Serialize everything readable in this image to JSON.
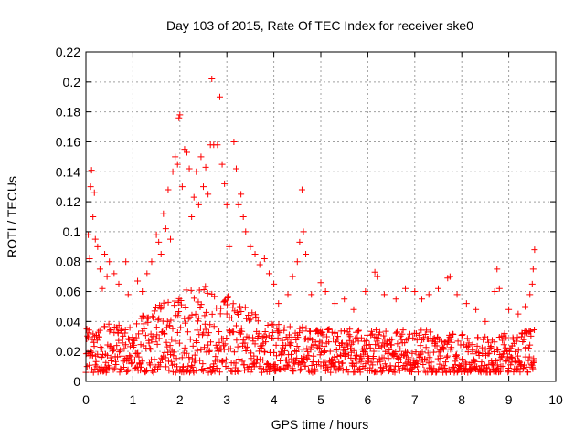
{
  "chart_data": {
    "type": "scatter",
    "title": "Day 103 of 2015, Rate Of TEC Index for receiver ske0",
    "xlabel": "GPS time / hours",
    "ylabel": "ROTI / TECUs",
    "xlim": [
      0,
      10
    ],
    "ylim": [
      0,
      0.22
    ],
    "x_ticks": [
      "0",
      "1",
      "2",
      "3",
      "4",
      "5",
      "6",
      "7",
      "8",
      "9",
      "10"
    ],
    "y_ticks": [
      "0",
      "0.02",
      "0.04",
      "0.06",
      "0.08",
      "0.1",
      "0.12",
      "0.14",
      "0.16",
      "0.18",
      "0.2",
      "0.22"
    ],
    "grid": true,
    "marker": "+",
    "color": "#ff0000",
    "series": [
      {
        "name": "ROTI",
        "points": [
          [
            0.02,
            0.035
          ],
          [
            0.05,
            0.098
          ],
          [
            0.08,
            0.082
          ],
          [
            0.1,
            0.13
          ],
          [
            0.12,
            0.141
          ],
          [
            0.15,
            0.11
          ],
          [
            0.18,
            0.126
          ],
          [
            0.2,
            0.095
          ],
          [
            0.25,
            0.09
          ],
          [
            0.3,
            0.075
          ],
          [
            0.35,
            0.062
          ],
          [
            0.4,
            0.085
          ],
          [
            0.45,
            0.07
          ],
          [
            0.5,
            0.08
          ],
          [
            0.6,
            0.072
          ],
          [
            0.7,
            0.065
          ],
          [
            0.85,
            0.08
          ],
          [
            0.9,
            0.058
          ],
          [
            1.1,
            0.067
          ],
          [
            1.2,
            0.06
          ],
          [
            1.3,
            0.072
          ],
          [
            1.4,
            0.08
          ],
          [
            1.5,
            0.098
          ],
          [
            1.55,
            0.093
          ],
          [
            1.6,
            0.085
          ],
          [
            1.65,
            0.112
          ],
          [
            1.7,
            0.102
          ],
          [
            1.75,
            0.128
          ],
          [
            1.8,
            0.095
          ],
          [
            1.85,
            0.14
          ],
          [
            1.9,
            0.15
          ],
          [
            1.95,
            0.145
          ],
          [
            1.98,
            0.176
          ],
          [
            2.0,
            0.178
          ],
          [
            2.05,
            0.13
          ],
          [
            2.1,
            0.155
          ],
          [
            2.15,
            0.153
          ],
          [
            2.2,
            0.142
          ],
          [
            2.25,
            0.11
          ],
          [
            2.3,
            0.123
          ],
          [
            2.35,
            0.14
          ],
          [
            2.4,
            0.118
          ],
          [
            2.45,
            0.15
          ],
          [
            2.5,
            0.13
          ],
          [
            2.55,
            0.143
          ],
          [
            2.6,
            0.125
          ],
          [
            2.65,
            0.158
          ],
          [
            2.68,
            0.202
          ],
          [
            2.72,
            0.158
          ],
          [
            2.8,
            0.158
          ],
          [
            2.85,
            0.19
          ],
          [
            2.9,
            0.145
          ],
          [
            2.95,
            0.132
          ],
          [
            3.0,
            0.118
          ],
          [
            3.05,
            0.09
          ],
          [
            3.15,
            0.16
          ],
          [
            3.2,
            0.142
          ],
          [
            3.25,
            0.118
          ],
          [
            3.3,
            0.125
          ],
          [
            3.35,
            0.11
          ],
          [
            3.4,
            0.1
          ],
          [
            3.5,
            0.09
          ],
          [
            3.6,
            0.085
          ],
          [
            3.7,
            0.078
          ],
          [
            3.8,
            0.082
          ],
          [
            3.9,
            0.072
          ],
          [
            4.0,
            0.065
          ],
          [
            4.1,
            0.052
          ],
          [
            4.3,
            0.058
          ],
          [
            4.4,
            0.07
          ],
          [
            4.5,
            0.08
          ],
          [
            4.55,
            0.093
          ],
          [
            4.6,
            0.128
          ],
          [
            4.63,
            0.1
          ],
          [
            4.68,
            0.085
          ],
          [
            4.8,
            0.058
          ],
          [
            5.0,
            0.066
          ],
          [
            5.1,
            0.06
          ],
          [
            5.3,
            0.052
          ],
          [
            5.5,
            0.055
          ],
          [
            5.7,
            0.048
          ],
          [
            5.95,
            0.06
          ],
          [
            6.15,
            0.073
          ],
          [
            6.2,
            0.07
          ],
          [
            6.35,
            0.058
          ],
          [
            6.6,
            0.055
          ],
          [
            6.8,
            0.062
          ],
          [
            7.0,
            0.06
          ],
          [
            7.15,
            0.055
          ],
          [
            7.3,
            0.058
          ],
          [
            7.5,
            0.062
          ],
          [
            7.7,
            0.069
          ],
          [
            7.75,
            0.07
          ],
          [
            7.9,
            0.058
          ],
          [
            8.1,
            0.052
          ],
          [
            8.3,
            0.048
          ],
          [
            8.5,
            0.04
          ],
          [
            8.7,
            0.06
          ],
          [
            8.75,
            0.075
          ],
          [
            8.8,
            0.062
          ],
          [
            9.0,
            0.048
          ],
          [
            9.2,
            0.045
          ],
          [
            9.35,
            0.05
          ],
          [
            9.45,
            0.058
          ],
          [
            9.5,
            0.065
          ],
          [
            9.52,
            0.075
          ],
          [
            9.55,
            0.088
          ]
        ],
        "baseline": {
          "x_start": 0,
          "x_end": 9.55,
          "x_step": 0.008,
          "profile": [
            [
              0,
              0.035
            ],
            [
              0.5,
              0.04
            ],
            [
              1.0,
              0.04
            ],
            [
              1.5,
              0.05
            ],
            [
              2.0,
              0.06
            ],
            [
              2.5,
              0.065
            ],
            [
              3.0,
              0.058
            ],
            [
              3.5,
              0.048
            ],
            [
              4.0,
              0.04
            ],
            [
              5.0,
              0.035
            ],
            [
              6.0,
              0.035
            ],
            [
              7.0,
              0.035
            ],
            [
              8.0,
              0.032
            ],
            [
              9.0,
              0.032
            ],
            [
              9.55,
              0.035
            ]
          ],
          "floor": 0.006
        }
      }
    ]
  }
}
